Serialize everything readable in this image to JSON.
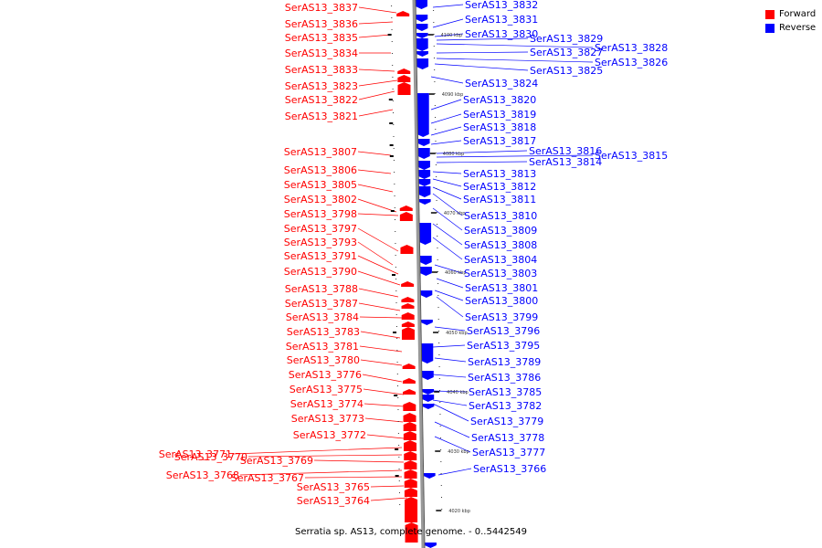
{
  "legend": {
    "forward_label": "Forward",
    "reverse_label": "Reverse",
    "forward_color": "#ff0000",
    "reverse_color": "#0000ff"
  },
  "caption": "Serratia sp. AS13, complete genome. - 0..5442549",
  "ticks": [
    "4100 kbp",
    "4090 kbp",
    "4080 kbp",
    "4070 kbp",
    "4060 kbp",
    "4050 kbp",
    "4040 kbp",
    "4030 kbp",
    "4020 kbp"
  ],
  "forward_genes": [
    "SerAS13_3837",
    "SerAS13_3836",
    "SerAS13_3835",
    "SerAS13_3834",
    "SerAS13_3833",
    "SerAS13_3823",
    "SerAS13_3822",
    "SerAS13_3821",
    "SerAS13_3807",
    "SerAS13_3806",
    "SerAS13_3805",
    "SerAS13_3802",
    "SerAS13_3798",
    "SerAS13_3797",
    "SerAS13_3793",
    "SerAS13_3791",
    "SerAS13_3790",
    "SerAS13_3788",
    "SerAS13_3787",
    "SerAS13_3784",
    "SerAS13_3783",
    "SerAS13_3781",
    "SerAS13_3780",
    "SerAS13_3776",
    "SerAS13_3775",
    "SerAS13_3774",
    "SerAS13_3773",
    "SerAS13_3772",
    "SerAS13_3771",
    "SerAS13_3770",
    "SerAS13_3769",
    "SerAS13_3768",
    "SerAS13_3767",
    "SerAS13_3765",
    "SerAS13_3764"
  ],
  "reverse_genes": [
    "SerAS13_3832",
    "SerAS13_3831",
    "SerAS13_3830",
    "SerAS13_3829",
    "SerAS13_3828",
    "SerAS13_3827",
    "SerAS13_3826",
    "SerAS13_3825",
    "SerAS13_3824",
    "SerAS13_3820",
    "SerAS13_3819",
    "SerAS13_3818",
    "SerAS13_3817",
    "SerAS13_3816",
    "SerAS13_3815",
    "SerAS13_3814",
    "SerAS13_3813",
    "SerAS13_3812",
    "SerAS13_3811",
    "SerAS13_3810",
    "SerAS13_3809",
    "SerAS13_3808",
    "SerAS13_3804",
    "SerAS13_3803",
    "SerAS13_3801",
    "SerAS13_3800",
    "SerAS13_3799",
    "SerAS13_3796",
    "SerAS13_3795",
    "SerAS13_3789",
    "SerAS13_3786",
    "SerAS13_3785",
    "SerAS13_3782",
    "SerAS13_3779",
    "SerAS13_3778",
    "SerAS13_3777",
    "SerAS13_3766"
  ]
}
